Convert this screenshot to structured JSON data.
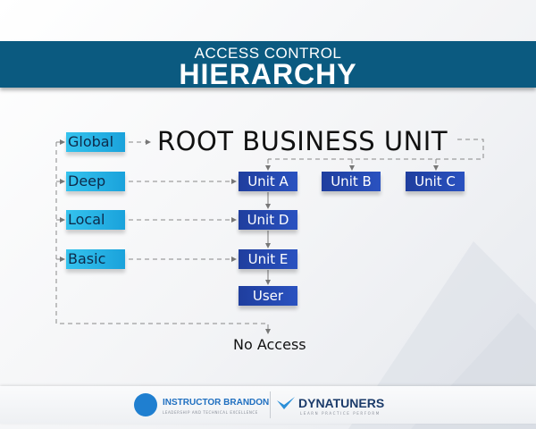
{
  "header": {
    "subtitle": "ACCESS CONTROL",
    "title": "HIERARCHY"
  },
  "root_label": "ROOT BUSINESS UNIT",
  "access_levels": [
    {
      "label": "Global"
    },
    {
      "label": "Deep"
    },
    {
      "label": "Local"
    },
    {
      "label": "Basic"
    }
  ],
  "units": {
    "a": "Unit A",
    "b": "Unit B",
    "c": "Unit C",
    "d": "Unit D",
    "e": "Unit E",
    "user": "User"
  },
  "no_access": "No Access",
  "footer": {
    "brand1": "INSTRUCTOR BRANDON",
    "brand1_tagline": "LEADERSHIP AND TECHNICAL EXCELLENCE",
    "brand2": "DYNATUNERS",
    "brand2_tagline": "LEARN PRACTICE PERFORM"
  },
  "colors": {
    "banner": "#0b5a80",
    "level_box": "#29b6e8",
    "unit_box": "#1f3e9e"
  }
}
